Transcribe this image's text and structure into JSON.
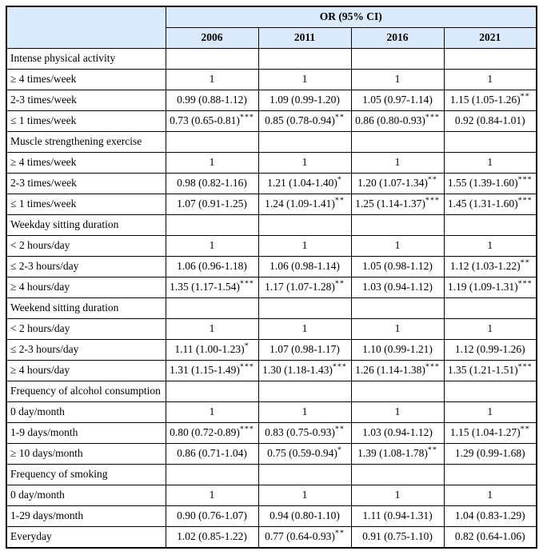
{
  "colors": {
    "header_bg": "#daeafa",
    "border": "#000000",
    "text": "#000000"
  },
  "table": {
    "group_label": "OR (95% CI)",
    "years": [
      "2006",
      "2011",
      "2016",
      "2021"
    ],
    "sections": [
      {
        "title": "Intense physical activity",
        "rows": [
          {
            "label": "≥ 4 times/week",
            "values": [
              {
                "text": "1",
                "sup": ""
              },
              {
                "text": "1",
                "sup": ""
              },
              {
                "text": "1",
                "sup": ""
              },
              {
                "text": "1",
                "sup": ""
              }
            ]
          },
          {
            "label": "2-3 times/week",
            "values": [
              {
                "text": "0.99 (0.88-1.12)",
                "sup": ""
              },
              {
                "text": "1.09 (0.99-1.20)",
                "sup": ""
              },
              {
                "text": "1.05 (0.97-1.14)",
                "sup": ""
              },
              {
                "text": "1.15 (1.05-1.26)",
                "sup": "**"
              }
            ]
          },
          {
            "label": "≤ 1 times/week",
            "values": [
              {
                "text": "0.73 (0.65-0.81)",
                "sup": "***"
              },
              {
                "text": "0.85 (0.78-0.94)",
                "sup": "**"
              },
              {
                "text": "0.86 (0.80-0.93)",
                "sup": "***"
              },
              {
                "text": "0.92 (0.84-1.01)",
                "sup": ""
              }
            ]
          }
        ]
      },
      {
        "title": "Muscle strengthening exercise",
        "rows": [
          {
            "label": "≥ 4 times/week",
            "values": [
              {
                "text": "1",
                "sup": ""
              },
              {
                "text": "1",
                "sup": ""
              },
              {
                "text": "1",
                "sup": ""
              },
              {
                "text": "1",
                "sup": ""
              }
            ]
          },
          {
            "label": "2-3 times/week",
            "values": [
              {
                "text": "0.98 (0.82-1.16)",
                "sup": ""
              },
              {
                "text": "1.21 (1.04-1.40)",
                "sup": "*"
              },
              {
                "text": "1.20 (1.07-1.34)",
                "sup": "**"
              },
              {
                "text": "1.55 (1.39-1.60)",
                "sup": "***"
              }
            ]
          },
          {
            "label": "≤ 1 times/week",
            "values": [
              {
                "text": "1.07 (0.91-1.25)",
                "sup": ""
              },
              {
                "text": "1.24 (1.09-1.41)",
                "sup": "**"
              },
              {
                "text": "1.25 (1.14-1.37)",
                "sup": "***"
              },
              {
                "text": "1.45 (1.31-1.60)",
                "sup": "***"
              }
            ]
          }
        ]
      },
      {
        "title": "Weekday sitting duration",
        "rows": [
          {
            "label": "< 2 hours/day",
            "values": [
              {
                "text": "1",
                "sup": ""
              },
              {
                "text": "1",
                "sup": ""
              },
              {
                "text": "1",
                "sup": ""
              },
              {
                "text": "1",
                "sup": ""
              }
            ]
          },
          {
            "label": "≤ 2-3 hours/day",
            "values": [
              {
                "text": "1.06 (0.96-1.18)",
                "sup": ""
              },
              {
                "text": "1.06 (0.98-1.14)",
                "sup": ""
              },
              {
                "text": "1.05 (0.98-1.12)",
                "sup": ""
              },
              {
                "text": "1.12 (1.03-1.22)",
                "sup": "**"
              }
            ]
          },
          {
            "label": "≥ 4 hours/day",
            "values": [
              {
                "text": "1.35 (1.17-1.54)",
                "sup": "***"
              },
              {
                "text": "1.17 (1.07-1.28)",
                "sup": "**"
              },
              {
                "text": "1.03 (0.94-1.12)",
                "sup": ""
              },
              {
                "text": "1.19 (1.09-1.31)",
                "sup": "***"
              }
            ]
          }
        ]
      },
      {
        "title": "Weekend sitting duration",
        "rows": [
          {
            "label": "< 2 hours/day",
            "values": [
              {
                "text": "1",
                "sup": ""
              },
              {
                "text": "1",
                "sup": ""
              },
              {
                "text": "1",
                "sup": ""
              },
              {
                "text": "1",
                "sup": ""
              }
            ]
          },
          {
            "label": "≤ 2-3 hours/day",
            "values": [
              {
                "text": "1.11 (1.00-1.23)",
                "sup": "*"
              },
              {
                "text": "1.07 (0.98-1.17)",
                "sup": ""
              },
              {
                "text": "1.10 (0.99-1.21)",
                "sup": ""
              },
              {
                "text": "1.12 (0.99-1.26)",
                "sup": ""
              }
            ]
          },
          {
            "label": "≥ 4 hours/day",
            "values": [
              {
                "text": "1.31 (1.15-1.49)",
                "sup": "***"
              },
              {
                "text": "1.30 (1.18-1.43)",
                "sup": "***"
              },
              {
                "text": "1.26 (1.14-1.38)",
                "sup": "***"
              },
              {
                "text": "1.35 (1.21-1.51)",
                "sup": "***"
              }
            ]
          }
        ]
      },
      {
        "title": "Frequency of alcohol consumption",
        "rows": [
          {
            "label": "0 day/month",
            "values": [
              {
                "text": "1",
                "sup": ""
              },
              {
                "text": "1",
                "sup": ""
              },
              {
                "text": "1",
                "sup": ""
              },
              {
                "text": "1",
                "sup": ""
              }
            ]
          },
          {
            "label": "1-9 days/month",
            "values": [
              {
                "text": "0.80 (0.72-0.89)",
                "sup": "***"
              },
              {
                "text": "0.83 (0.75-0.93)",
                "sup": "**"
              },
              {
                "text": "1.03 (0.94-1.12)",
                "sup": ""
              },
              {
                "text": "1.15 (1.04-1.27)",
                "sup": "**"
              }
            ]
          },
          {
            "label": "≥ 10 days/month",
            "values": [
              {
                "text": "0.86 (0.71-1.04)",
                "sup": ""
              },
              {
                "text": "0.75 (0.59-0.94)",
                "sup": "*"
              },
              {
                "text": "1.39 (1.08-1.78)",
                "sup": "**"
              },
              {
                "text": "1.29 (0.99-1.68)",
                "sup": ""
              }
            ]
          }
        ]
      },
      {
        "title": "Frequency of smoking",
        "rows": [
          {
            "label": "0 day/month",
            "values": [
              {
                "text": "1",
                "sup": ""
              },
              {
                "text": "1",
                "sup": ""
              },
              {
                "text": "1",
                "sup": ""
              },
              {
                "text": "1",
                "sup": ""
              }
            ]
          },
          {
            "label": "1-29 days/month",
            "values": [
              {
                "text": "0.90 (0.76-1.07)",
                "sup": ""
              },
              {
                "text": "0.94 (0.80-1.10)",
                "sup": ""
              },
              {
                "text": "1.11 (0.94-1.31)",
                "sup": ""
              },
              {
                "text": "1.04 (0.83-1.29)",
                "sup": ""
              }
            ]
          },
          {
            "label": "Everyday",
            "values": [
              {
                "text": "1.02 (0.85-1.22)",
                "sup": ""
              },
              {
                "text": "0.77 (0.64-0.93)",
                "sup": "**"
              },
              {
                "text": "0.91 (0.75-1.10)",
                "sup": ""
              },
              {
                "text": "0.82 (0.64-1.06)",
                "sup": ""
              }
            ]
          }
        ]
      }
    ]
  }
}
